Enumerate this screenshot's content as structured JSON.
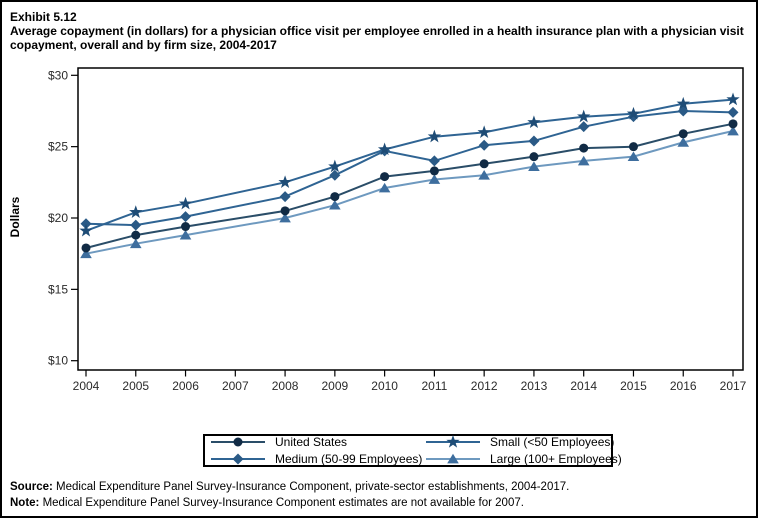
{
  "exhibit_label": "Exhibit 5.12",
  "title": "Average copayment (in dollars) for a physician office visit per employee enrolled in a health insurance plan with a physician visit copayment, overall and by firm size, 2004-2017",
  "footnotes": {
    "source_label": "Source:",
    "source_text": " Medical Expenditure Panel Survey-Insurance Component, private-sector establishments, 2004-2017.",
    "note_label": "Note:",
    "note_text": " Medical Expenditure Panel Survey-Insurance Component estimates are not available for 2007."
  },
  "chart_data": {
    "type": "line",
    "title": "Average copayment (in dollars) for a physician office visit per employee enrolled in a health insurance plan with a physician visit copayment, overall and by firm size, 2004-2017",
    "xlabel": "",
    "ylabel": "Dollars",
    "x": [
      2004,
      2005,
      2006,
      2007,
      2008,
      2009,
      2010,
      2011,
      2012,
      2013,
      2014,
      2015,
      2016,
      2017
    ],
    "x_tick_labels": [
      "2004",
      "2005",
      "2006",
      "2007",
      "2008",
      "2009",
      "2010",
      "2011",
      "2012",
      "2013",
      "2014",
      "2015",
      "2016",
      "2017"
    ],
    "y_ticks": [
      10,
      15,
      20,
      25,
      30
    ],
    "y_tick_labels": [
      "$10",
      "$15",
      "$20",
      "$25",
      "$30"
    ],
    "ylim": [
      10,
      30
    ],
    "grid": false,
    "legend_position": "bottom",
    "missing_year": 2007,
    "series": [
      {
        "name": "United States",
        "marker": "circle",
        "color": "#112b45",
        "line_color": "#2a4d68",
        "values": [
          17.9,
          18.8,
          19.4,
          null,
          20.5,
          21.5,
          22.9,
          23.3,
          23.8,
          24.3,
          24.9,
          25.0,
          25.9,
          26.6
        ]
      },
      {
        "name": "Small (<50 Employees)",
        "marker": "star",
        "color": "#1e4c76",
        "line_color": "#2f6493",
        "values": [
          19.1,
          20.4,
          21.0,
          null,
          22.5,
          23.6,
          24.8,
          25.7,
          26.0,
          26.7,
          27.1,
          27.3,
          28.0,
          28.3
        ]
      },
      {
        "name": "Medium (50-99 Employees)",
        "marker": "diamond",
        "color": "#2a5a86",
        "line_color": "#2f6493",
        "values": [
          19.6,
          19.5,
          20.1,
          null,
          21.5,
          23.0,
          24.7,
          24.0,
          25.1,
          25.4,
          26.4,
          27.1,
          27.5,
          27.4
        ]
      },
      {
        "name": "Large (100+ Employees)",
        "marker": "triangle",
        "color": "#3e6e9e",
        "line_color": "#6e99bf",
        "values": [
          17.5,
          18.2,
          18.8,
          null,
          20.0,
          20.9,
          22.1,
          22.7,
          23.0,
          23.6,
          24.0,
          24.3,
          25.3,
          26.1
        ]
      }
    ]
  }
}
